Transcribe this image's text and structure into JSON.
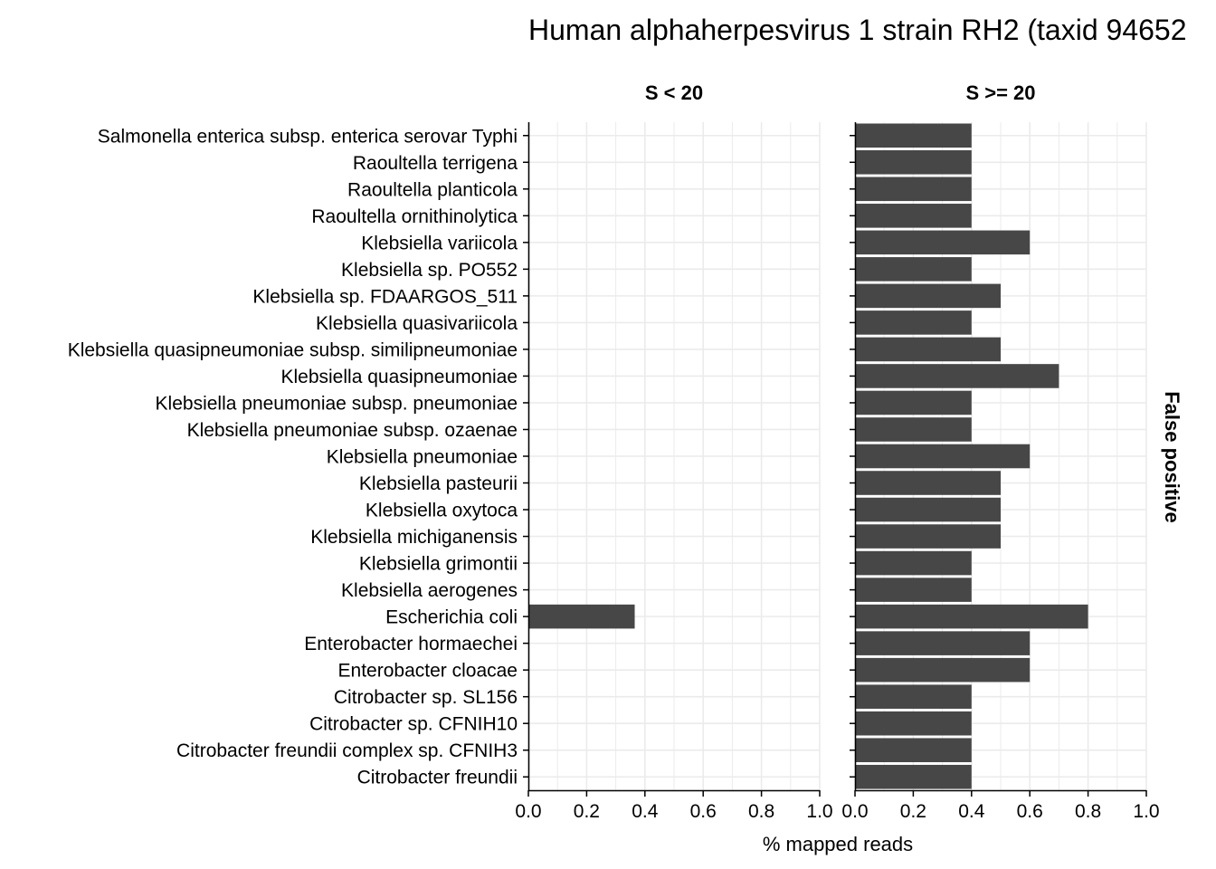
{
  "chart_data": {
    "type": "bar",
    "orientation": "horizontal",
    "title": "Human alphaherpesvirus 1 strain RH2 (taxid 94652",
    "xlabel": "% mapped reads",
    "strip_right": "False positive",
    "xlim": [
      0,
      1
    ],
    "xticks": [
      0.0,
      0.2,
      0.4,
      0.6,
      0.8,
      1.0
    ],
    "xtick_labels": [
      "0.0",
      "0.2",
      "0.4",
      "0.6",
      "0.8",
      "1.0"
    ],
    "grid": true,
    "bar_color": "#474747",
    "grid_color": "#ebebeb",
    "categories": [
      "Salmonella enterica subsp. enterica serovar Typhi",
      "Raoultella terrigena",
      "Raoultella planticola",
      "Raoultella ornithinolytica",
      "Klebsiella variicola",
      "Klebsiella sp. PO552",
      "Klebsiella sp. FDAARGOS_511",
      "Klebsiella quasivariicola",
      "Klebsiella quasipneumoniae subsp. similipneumoniae",
      "Klebsiella quasipneumoniae",
      "Klebsiella pneumoniae subsp. pneumoniae",
      "Klebsiella pneumoniae subsp. ozaenae",
      "Klebsiella pneumoniae",
      "Klebsiella pasteurii",
      "Klebsiella oxytoca",
      "Klebsiella michiganensis",
      "Klebsiella grimontii",
      "Klebsiella aerogenes",
      "Escherichia coli",
      "Enterobacter hormaechei",
      "Enterobacter cloacae",
      "Citrobacter sp. SL156",
      "Citrobacter sp. CFNIH10",
      "Citrobacter freundii complex sp. CFNIH3",
      "Citrobacter freundii"
    ],
    "panels": [
      {
        "label": "S < 20",
        "values": [
          null,
          null,
          null,
          null,
          null,
          null,
          null,
          null,
          null,
          null,
          null,
          null,
          null,
          null,
          null,
          null,
          null,
          null,
          0.365,
          null,
          null,
          null,
          null,
          null,
          null
        ]
      },
      {
        "label": "S >= 20",
        "values": [
          0.4,
          0.4,
          0.4,
          0.4,
          0.6,
          0.4,
          0.5,
          0.4,
          0.5,
          0.7,
          0.4,
          0.4,
          0.6,
          0.5,
          0.5,
          0.5,
          0.4,
          0.4,
          0.8,
          0.6,
          0.6,
          0.4,
          0.4,
          0.4,
          0.4
        ]
      }
    ]
  }
}
